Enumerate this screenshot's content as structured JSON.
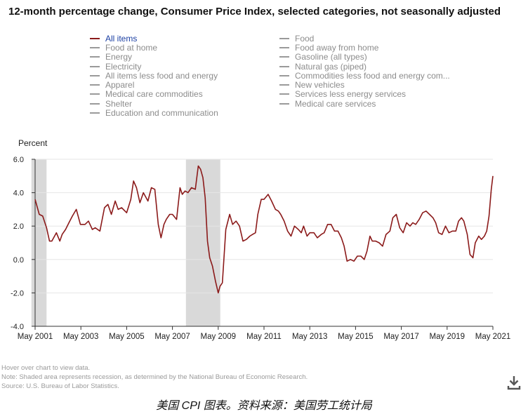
{
  "title": "12-month percentage change, Consumer Price Index, selected categories, not seasonally adjusted",
  "legend": {
    "left": [
      "All items",
      "Food at home",
      "Energy",
      "Electricity",
      "All items less food and energy",
      "Apparel",
      "Medical care commodities",
      "Shelter",
      "Education and communication"
    ],
    "right": [
      "Food",
      "Food away from home",
      "Gasoline (all types)",
      "Natural gas (piped)",
      "Commodities less food and energy com...",
      "New vehicles",
      "Services less energy services",
      "Medical care services"
    ]
  },
  "notes": {
    "hover": "Hover over chart to view data.",
    "recession": "Note: Shaded area represents recession, as determined by the National Bureau of Economic Research.",
    "source": "Source: U.S. Bureau of Labor Statistics."
  },
  "caption": "美国 CPI 图表。资料来源：美国劳工统计局",
  "icons": {
    "download": "download-icon"
  },
  "colors": {
    "series": "#8b1a1a",
    "recession": "#d9d9d9",
    "legend_active": "#1b3fa3",
    "legend_inactive": "#8c8c8c"
  },
  "chart_data": {
    "type": "line",
    "ylabel": "Percent",
    "xlabel": "",
    "ylim": [
      -4.0,
      6.0
    ],
    "yticks": [
      "6.0",
      "4.0",
      "2.0",
      "0.0",
      "-2.0",
      "-4.0"
    ],
    "ytick_values": [
      6,
      4,
      2,
      0,
      -2,
      -4
    ],
    "xlim": [
      2001.37,
      2021.37
    ],
    "xticks": [
      "May 2001",
      "May 2003",
      "May 2005",
      "May 2007",
      "May 2009",
      "May 2011",
      "May 2013",
      "May 2015",
      "May 2017",
      "May 2019",
      "May 2021"
    ],
    "xtick_values": [
      2001.37,
      2003.37,
      2005.37,
      2007.37,
      2009.37,
      2011.37,
      2013.37,
      2015.37,
      2017.37,
      2019.37,
      2021.37
    ],
    "recessions": [
      [
        2001.21,
        2001.87
      ],
      [
        2007.96,
        2009.46
      ]
    ],
    "series": [
      {
        "name": "All items",
        "x": [
          2001.37,
          2001.55,
          2001.7,
          2001.87,
          2002.0,
          2002.1,
          2002.3,
          2002.45,
          2002.55,
          2002.7,
          2002.85,
          2003.0,
          2003.17,
          2003.35,
          2003.55,
          2003.7,
          2003.87,
          2004.0,
          2004.2,
          2004.4,
          2004.55,
          2004.7,
          2004.87,
          2005.0,
          2005.15,
          2005.37,
          2005.55,
          2005.67,
          2005.8,
          2005.95,
          2006.1,
          2006.3,
          2006.45,
          2006.6,
          2006.75,
          2006.87,
          2007.0,
          2007.1,
          2007.25,
          2007.37,
          2007.55,
          2007.7,
          2007.8,
          2007.92,
          2008.05,
          2008.2,
          2008.37,
          2008.5,
          2008.6,
          2008.7,
          2008.8,
          2008.9,
          2009.0,
          2009.12,
          2009.25,
          2009.37,
          2009.45,
          2009.55,
          2009.7,
          2009.87,
          2010.0,
          2010.15,
          2010.3,
          2010.45,
          2010.6,
          2010.75,
          2010.87,
          2011.0,
          2011.1,
          2011.25,
          2011.37,
          2011.55,
          2011.7,
          2011.87,
          2012.0,
          2012.1,
          2012.25,
          2012.4,
          2012.55,
          2012.7,
          2012.87,
          2013.0,
          2013.1,
          2013.25,
          2013.37,
          2013.55,
          2013.7,
          2013.87,
          2014.0,
          2014.15,
          2014.3,
          2014.45,
          2014.6,
          2014.75,
          2014.87,
          2015.0,
          2015.15,
          2015.3,
          2015.45,
          2015.6,
          2015.75,
          2015.87,
          2016.0,
          2016.1,
          2016.25,
          2016.4,
          2016.55,
          2016.7,
          2016.87,
          2017.0,
          2017.15,
          2017.3,
          2017.45,
          2017.6,
          2017.75,
          2017.87,
          2018.0,
          2018.15,
          2018.3,
          2018.45,
          2018.6,
          2018.75,
          2018.87,
          2019.0,
          2019.15,
          2019.3,
          2019.45,
          2019.6,
          2019.75,
          2019.87,
          2020.0,
          2020.1,
          2020.25,
          2020.37,
          2020.5,
          2020.6,
          2020.75,
          2020.87,
          2021.0,
          2021.1,
          2021.2,
          2021.3,
          2021.37
        ],
        "values": [
          3.6,
          2.7,
          2.6,
          1.9,
          1.1,
          1.1,
          1.6,
          1.1,
          1.5,
          1.8,
          2.2,
          2.6,
          3.0,
          2.1,
          2.1,
          2.3,
          1.8,
          1.9,
          1.7,
          3.1,
          3.3,
          2.7,
          3.5,
          3.0,
          3.1,
          2.8,
          3.6,
          4.7,
          4.3,
          3.4,
          4.0,
          3.5,
          4.3,
          4.2,
          2.1,
          1.3,
          2.1,
          2.4,
          2.7,
          2.7,
          2.4,
          4.3,
          3.9,
          4.1,
          4.0,
          4.3,
          4.2,
          5.6,
          5.4,
          4.9,
          3.7,
          1.1,
          0.1,
          -0.4,
          -1.3,
          -2.0,
          -1.6,
          -1.4,
          1.8,
          2.7,
          2.1,
          2.3,
          2.0,
          1.1,
          1.2,
          1.4,
          1.5,
          1.6,
          2.7,
          3.6,
          3.6,
          3.9,
          3.5,
          3.0,
          2.9,
          2.7,
          2.3,
          1.7,
          1.4,
          2.0,
          1.8,
          1.6,
          2.0,
          1.4,
          1.6,
          1.6,
          1.3,
          1.5,
          1.6,
          2.1,
          2.1,
          1.7,
          1.7,
          1.3,
          0.8,
          -0.1,
          0.0,
          -0.1,
          0.2,
          0.2,
          0.0,
          0.5,
          1.4,
          1.1,
          1.1,
          1.0,
          0.8,
          1.5,
          1.7,
          2.5,
          2.7,
          1.9,
          1.6,
          2.2,
          2.0,
          2.2,
          2.1,
          2.4,
          2.8,
          2.9,
          2.7,
          2.5,
          2.2,
          1.6,
          1.5,
          2.0,
          1.6,
          1.7,
          1.7,
          2.3,
          2.5,
          2.3,
          1.5,
          0.3,
          0.1,
          1.0,
          1.4,
          1.2,
          1.4,
          1.7,
          2.6,
          4.2,
          5.0
        ]
      }
    ]
  }
}
